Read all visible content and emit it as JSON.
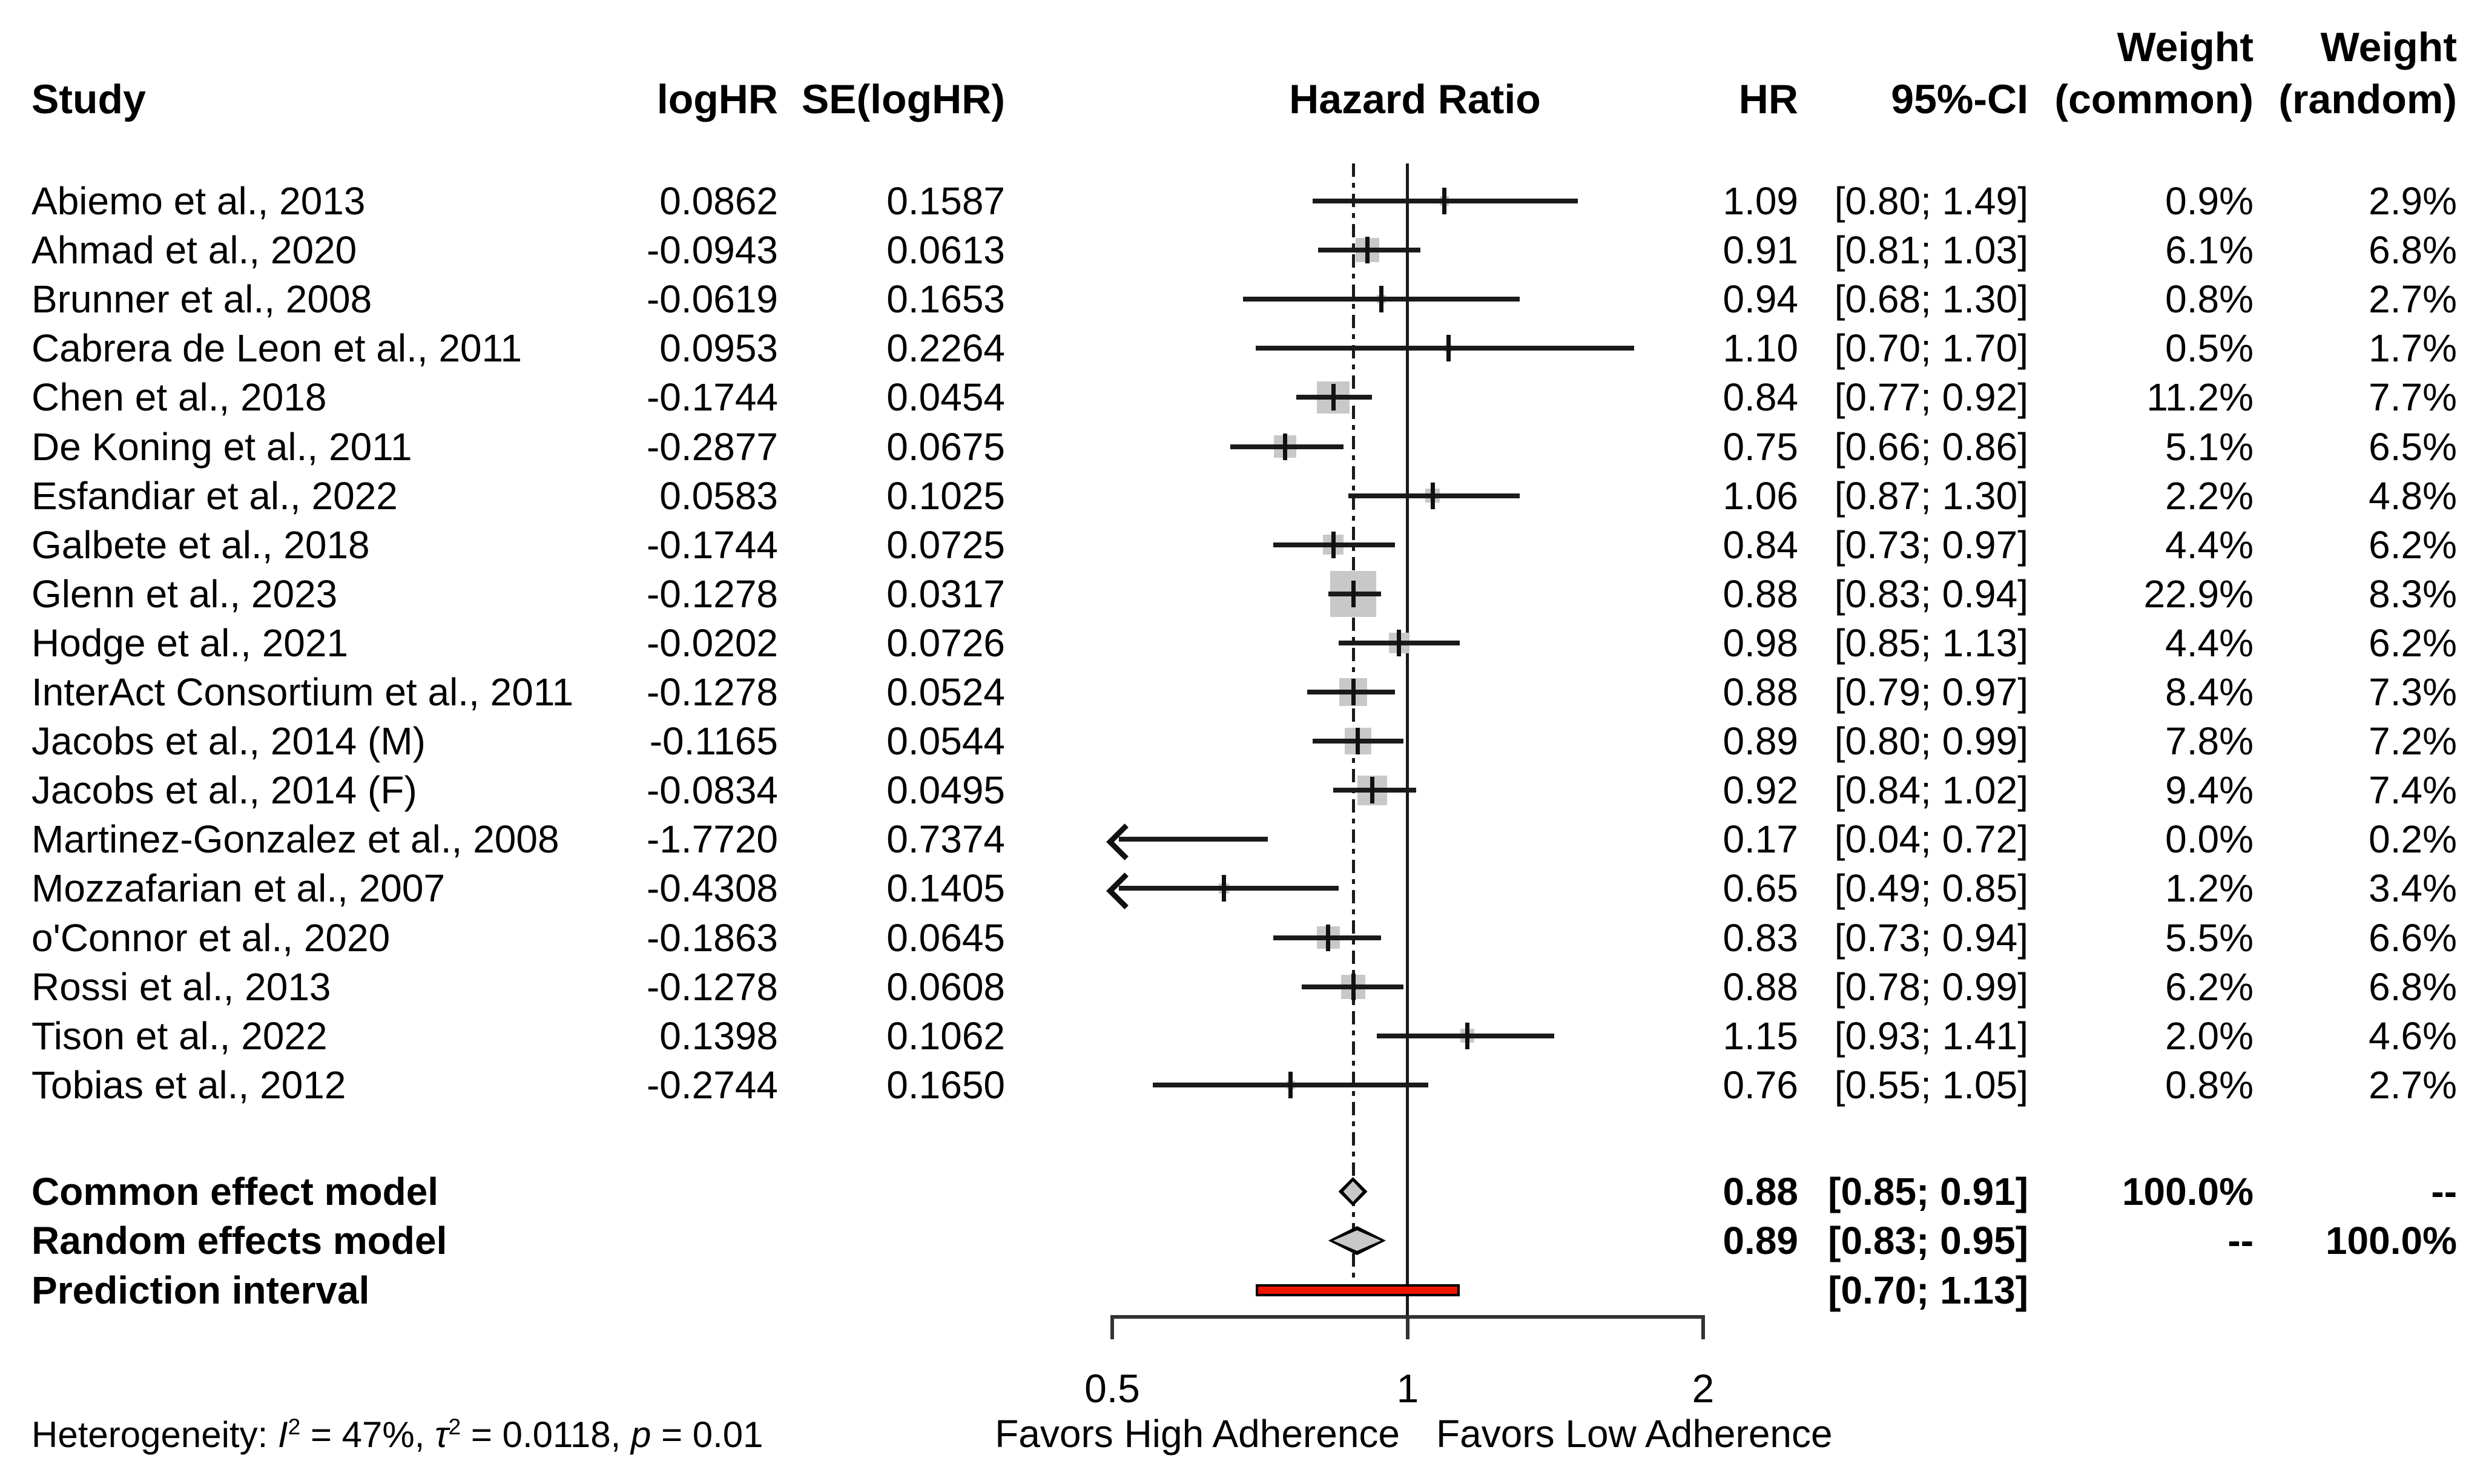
{
  "header": {
    "study": "Study",
    "loghr": "logHR",
    "se": "SE(logHR)",
    "plot_title": "Hazard Ratio",
    "hr": "HR",
    "ci": "95%-CI",
    "weight_top": "Weight",
    "weight_common": "(common)",
    "weight_random": "(random)"
  },
  "chart_data": {
    "type": "scatter",
    "variant": "forest-plot",
    "x_scale": "log2",
    "x_ticks": [
      0.5,
      1,
      2
    ],
    "x_tick_labels": [
      "0.5",
      "1",
      "2"
    ],
    "reference_line": 1,
    "pooled_line": 0.88,
    "favors_left": "Favors High Adherence",
    "favors_right": "Favors Low Adherence",
    "marker_color": "#c8c8c8",
    "prediction_color": "#ee1500",
    "studies": [
      {
        "name": "Abiemo et al., 2013",
        "loghr": "0.0862",
        "se": "0.1587",
        "hr": "1.09",
        "ci": "[0.80; 1.49]",
        "wc": "0.9%",
        "wr": "2.9%",
        "est": 1.09,
        "lo": 0.8,
        "hi": 1.49,
        "weight": 0.9
      },
      {
        "name": "Ahmad et al., 2020",
        "loghr": "-0.0943",
        "se": "0.0613",
        "hr": "0.91",
        "ci": "[0.81; 1.03]",
        "wc": "6.1%",
        "wr": "6.8%",
        "est": 0.91,
        "lo": 0.81,
        "hi": 1.03,
        "weight": 6.1
      },
      {
        "name": "Brunner et al., 2008",
        "loghr": "-0.0619",
        "se": "0.1653",
        "hr": "0.94",
        "ci": "[0.68; 1.30]",
        "wc": "0.8%",
        "wr": "2.7%",
        "est": 0.94,
        "lo": 0.68,
        "hi": 1.3,
        "weight": 0.8
      },
      {
        "name": "Cabrera de Leon et al., 2011",
        "loghr": "0.0953",
        "se": "0.2264",
        "hr": "1.10",
        "ci": "[0.70; 1.70]",
        "wc": "0.5%",
        "wr": "1.7%",
        "est": 1.1,
        "lo": 0.7,
        "hi": 1.7,
        "weight": 0.5
      },
      {
        "name": "Chen et al., 2018",
        "loghr": "-0.1744",
        "se": "0.0454",
        "hr": "0.84",
        "ci": "[0.77; 0.92]",
        "wc": "11.2%",
        "wr": "7.7%",
        "est": 0.84,
        "lo": 0.77,
        "hi": 0.92,
        "weight": 11.2
      },
      {
        "name": "De Koning et al., 2011",
        "loghr": "-0.2877",
        "se": "0.0675",
        "hr": "0.75",
        "ci": "[0.66; 0.86]",
        "wc": "5.1%",
        "wr": "6.5%",
        "est": 0.75,
        "lo": 0.66,
        "hi": 0.86,
        "weight": 5.1
      },
      {
        "name": "Esfandiar et al., 2022",
        "loghr": "0.0583",
        "se": "0.1025",
        "hr": "1.06",
        "ci": "[0.87; 1.30]",
        "wc": "2.2%",
        "wr": "4.8%",
        "est": 1.06,
        "lo": 0.87,
        "hi": 1.3,
        "weight": 2.2
      },
      {
        "name": "Galbete et al., 2018",
        "loghr": "-0.1744",
        "se": "0.0725",
        "hr": "0.84",
        "ci": "[0.73; 0.97]",
        "wc": "4.4%",
        "wr": "6.2%",
        "est": 0.84,
        "lo": 0.73,
        "hi": 0.97,
        "weight": 4.4
      },
      {
        "name": "Glenn et al., 2023",
        "loghr": "-0.1278",
        "se": "0.0317",
        "hr": "0.88",
        "ci": "[0.83; 0.94]",
        "wc": "22.9%",
        "wr": "8.3%",
        "est": 0.88,
        "lo": 0.83,
        "hi": 0.94,
        "weight": 22.9
      },
      {
        "name": "Hodge et al., 2021",
        "loghr": "-0.0202",
        "se": "0.0726",
        "hr": "0.98",
        "ci": "[0.85; 1.13]",
        "wc": "4.4%",
        "wr": "6.2%",
        "est": 0.98,
        "lo": 0.85,
        "hi": 1.13,
        "weight": 4.4
      },
      {
        "name": "InterAct Consortium et al., 2011",
        "loghr": "-0.1278",
        "se": "0.0524",
        "hr": "0.88",
        "ci": "[0.79; 0.97]",
        "wc": "8.4%",
        "wr": "7.3%",
        "est": 0.88,
        "lo": 0.79,
        "hi": 0.97,
        "weight": 8.4
      },
      {
        "name": "Jacobs et al., 2014 (M)",
        "loghr": "-0.1165",
        "se": "0.0544",
        "hr": "0.89",
        "ci": "[0.80; 0.99]",
        "wc": "7.8%",
        "wr": "7.2%",
        "est": 0.89,
        "lo": 0.8,
        "hi": 0.99,
        "weight": 7.8
      },
      {
        "name": "Jacobs et al., 2014 (F)",
        "loghr": "-0.0834",
        "se": "0.0495",
        "hr": "0.92",
        "ci": "[0.84; 1.02]",
        "wc": "9.4%",
        "wr": "7.4%",
        "est": 0.92,
        "lo": 0.84,
        "hi": 1.02,
        "weight": 9.4
      },
      {
        "name": "Martinez-Gonzalez et al., 2008",
        "loghr": "-1.7720",
        "se": "0.7374",
        "hr": "0.17",
        "ci": "[0.04; 0.72]",
        "wc": "0.0%",
        "wr": "0.2%",
        "est": 0.17,
        "lo": 0.04,
        "hi": 0.72,
        "weight": 0.0
      },
      {
        "name": "Mozzafarian et al., 2007",
        "loghr": "-0.4308",
        "se": "0.1405",
        "hr": "0.65",
        "ci": "[0.49; 0.85]",
        "wc": "1.2%",
        "wr": "3.4%",
        "est": 0.65,
        "lo": 0.49,
        "hi": 0.85,
        "weight": 1.2
      },
      {
        "name": "o'Connor et al., 2020",
        "loghr": "-0.1863",
        "se": "0.0645",
        "hr": "0.83",
        "ci": "[0.73; 0.94]",
        "wc": "5.5%",
        "wr": "6.6%",
        "est": 0.83,
        "lo": 0.73,
        "hi": 0.94,
        "weight": 5.5
      },
      {
        "name": "Rossi et al., 2013",
        "loghr": "-0.1278",
        "se": "0.0608",
        "hr": "0.88",
        "ci": "[0.78; 0.99]",
        "wc": "6.2%",
        "wr": "6.8%",
        "est": 0.88,
        "lo": 0.78,
        "hi": 0.99,
        "weight": 6.2
      },
      {
        "name": "Tison et al., 2022",
        "loghr": "0.1398",
        "se": "0.1062",
        "hr": "1.15",
        "ci": "[0.93; 1.41]",
        "wc": "2.0%",
        "wr": "4.6%",
        "est": 1.15,
        "lo": 0.93,
        "hi": 1.41,
        "weight": 2.0
      },
      {
        "name": "Tobias et al., 2012",
        "loghr": "-0.2744",
        "se": "0.1650",
        "hr": "0.76",
        "ci": "[0.55; 1.05]",
        "wc": "0.8%",
        "wr": "2.7%",
        "est": 0.76,
        "lo": 0.55,
        "hi": 1.05,
        "weight": 0.8
      }
    ],
    "summaries": [
      {
        "name": "Common effect model",
        "hr": "0.88",
        "ci": "[0.85; 0.91]",
        "wc": "100.0%",
        "wr": "--",
        "est": 0.88,
        "lo": 0.85,
        "hi": 0.91,
        "kind": "common"
      },
      {
        "name": "Random effects model",
        "hr": "0.89",
        "ci": "[0.83; 0.95]",
        "wc": "--",
        "wr": "100.0%",
        "est": 0.89,
        "lo": 0.83,
        "hi": 0.95,
        "kind": "random"
      }
    ],
    "prediction_interval": {
      "name": "Prediction interval",
      "ci": "[0.70; 1.13]",
      "lo": 0.7,
      "hi": 1.13
    }
  },
  "footer": {
    "het_label": "Heterogeneity:",
    "i_symbol": "I",
    "sup2": "2",
    "i_text": "= 47%,",
    "tau_symbol": "τ",
    "tau_text": "= 0.0118,",
    "p_symbol": "p",
    "p_text": "= 0.01"
  }
}
